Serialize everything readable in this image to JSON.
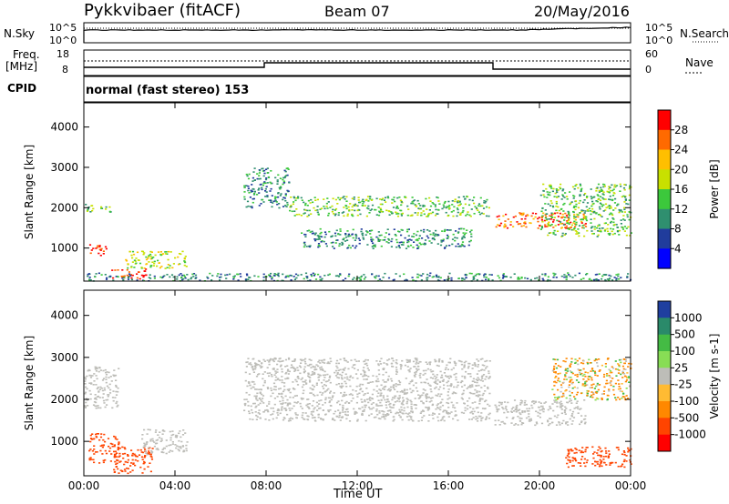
{
  "header": {
    "station": "Pykkvibaer (fitACF)",
    "beam": "Beam 07",
    "date": "20/May/2016"
  },
  "noise_panel": {
    "left_label": "N.Sky",
    "right_label": "N.Search",
    "left_ticks": [
      "10^5",
      "10^0"
    ],
    "right_ticks": [
      "10^5",
      "10^0"
    ]
  },
  "freq_panel": {
    "left_label_1": "Freq.",
    "left_label_2": "[MHz]",
    "right_label": "Nave",
    "left_ticks": [
      "18",
      "8"
    ],
    "right_ticks": [
      "60",
      "0"
    ]
  },
  "cpid_panel": {
    "label": "CPID",
    "text": "normal (fast stereo) 153"
  },
  "x_axis": {
    "title": "Time UT",
    "ticks": [
      "00:00",
      "04:00",
      "08:00",
      "12:00",
      "16:00",
      "20:00",
      "00:00"
    ]
  },
  "power_colorbar": {
    "title": "Power [dB]",
    "ticks": [
      "28",
      "24",
      "20",
      "16",
      "12",
      "8",
      "4"
    ],
    "colors": [
      "#ff0000",
      "#ff6a00",
      "#ffbf00",
      "#c8e000",
      "#3cc83c",
      "#2f8f6f",
      "#203c9c",
      "#0000ff"
    ]
  },
  "velocity_colorbar": {
    "title": "Velocity [m s-1]",
    "ticks": [
      "1000",
      "500",
      "100",
      "25",
      "-25",
      "-100",
      "-500",
      "-1000"
    ],
    "colors": [
      "#1f3f9f",
      "#2a8a6a",
      "#44bb44",
      "#88dd55",
      "#bdbdb8",
      "#ffbb33",
      "#ff8800",
      "#ff4400",
      "#ff0000"
    ]
  },
  "chart_data": [
    {
      "type": "heatmap",
      "title": "",
      "xlabel": "Time UT",
      "ylabel": "Slant Range [km]",
      "x_range_hours": [
        0,
        24
      ],
      "ylim": [
        180,
        4600
      ],
      "yticks": [
        1000,
        2000,
        3000,
        4000
      ],
      "colorbar": "Power [dB]",
      "regions": [
        {
          "x": [
            0.0,
            1.2
          ],
          "y": [
            1900,
            2100
          ],
          "value": 12
        },
        {
          "x": [
            0.2,
            1.0
          ],
          "y": [
            800,
            1100
          ],
          "value": 28
        },
        {
          "x": [
            1.2,
            2.8
          ],
          "y": [
            250,
            500
          ],
          "value": 28
        },
        {
          "x": [
            1.8,
            4.5
          ],
          "y": [
            500,
            950
          ],
          "value": 16
        },
        {
          "x": [
            7.0,
            9.0
          ],
          "y": [
            2000,
            3000
          ],
          "value": 8
        },
        {
          "x": [
            9.0,
            17.8
          ],
          "y": [
            1800,
            2300
          ],
          "value": 12
        },
        {
          "x": [
            9.5,
            17.0
          ],
          "y": [
            1000,
            1500
          ],
          "value": 8
        },
        {
          "x": [
            18.0,
            22.0
          ],
          "y": [
            1500,
            1900
          ],
          "value": 24
        },
        {
          "x": [
            20.0,
            24.0
          ],
          "y": [
            1300,
            2600
          ],
          "value": 12
        },
        {
          "x": [
            0.0,
            24.0
          ],
          "y": [
            200,
            400
          ],
          "value": 8
        }
      ]
    },
    {
      "type": "heatmap",
      "title": "",
      "xlabel": "Time UT",
      "ylabel": "Slant Range [km]",
      "x_range_hours": [
        0,
        24
      ],
      "ylim": [
        180,
        4600
      ],
      "yticks": [
        1000,
        2000,
        3000,
        4000
      ],
      "colorbar": "Velocity [m s-1]",
      "regions": [
        {
          "x": [
            0.0,
            1.5
          ],
          "y": [
            1800,
            2800
          ],
          "value": 0
        },
        {
          "x": [
            0.2,
            1.5
          ],
          "y": [
            500,
            1200
          ],
          "value": -500
        },
        {
          "x": [
            1.2,
            3.0
          ],
          "y": [
            250,
            900
          ],
          "value": -500
        },
        {
          "x": [
            2.5,
            4.5
          ],
          "y": [
            700,
            1300
          ],
          "value": 0
        },
        {
          "x": [
            7.0,
            17.8
          ],
          "y": [
            1500,
            3000
          ],
          "value": 0
        },
        {
          "x": [
            18.0,
            22.0
          ],
          "y": [
            1400,
            2000
          ],
          "value": 0
        },
        {
          "x": [
            20.5,
            24.0
          ],
          "y": [
            2000,
            3000
          ],
          "value": -100
        },
        {
          "x": [
            21.0,
            24.0
          ],
          "y": [
            400,
            900
          ],
          "value": -500
        }
      ]
    }
  ]
}
